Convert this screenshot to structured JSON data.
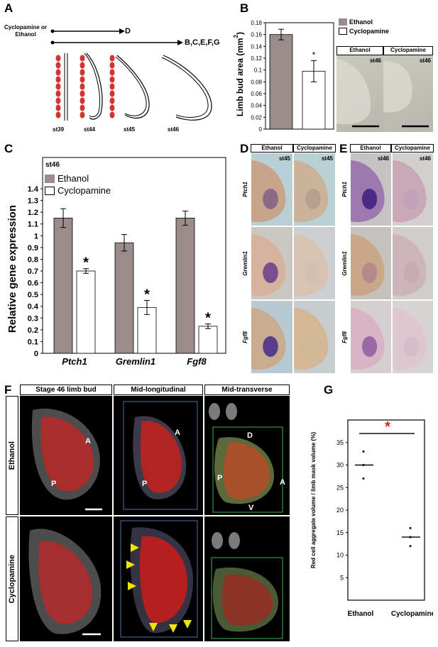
{
  "panels": {
    "A": "A",
    "B": "B",
    "C": "C",
    "D": "D",
    "E": "E",
    "F": "F",
    "G": "G"
  },
  "colors": {
    "ethanol": "#9b8c8c",
    "cyclopamine": "#ffffff",
    "embryo": "#d93030",
    "asterisk_red": "#e02020"
  },
  "panelA": {
    "treatment": "Cyclopamine or Ethanol",
    "arrow_short_target": "D",
    "arrow_long_target": "B,C,E,F,G",
    "stages": [
      "st39",
      "st44",
      "st45",
      "st46"
    ]
  },
  "legend": {
    "ethanol": "Ethanol",
    "cyclopamine": "Cyclopamine"
  },
  "panelB": {
    "photo_headers": [
      "Ethanol",
      "Cyclopamine"
    ],
    "stage_label": "st46"
  },
  "panelC": {
    "stage": "st46"
  },
  "panelD": {
    "headers": [
      "Ethanol",
      "Cyclopamine"
    ],
    "stage": "st45",
    "rows": [
      "Ptch1",
      "Gremlin1",
      "Fgf8"
    ]
  },
  "panelE": {
    "headers": [
      "Ethanol",
      "Cyclopamine"
    ],
    "stage": "st46",
    "rows": [
      "Ptch1",
      "Gremlin1",
      "Fgf8"
    ]
  },
  "panelF": {
    "columns": [
      "Stage 46 limb bud",
      "Mid-longitudinal",
      "Mid-transverse"
    ],
    "rows": [
      "Ethanol",
      "Cyclopamine"
    ],
    "axis_labels": {
      "anterior": "A",
      "posterior": "P",
      "dorsal": "D",
      "ventral": "V"
    }
  },
  "chart_data": [
    {
      "type": "bar",
      "panel": "B",
      "categories": [
        "Ethanol",
        "Cyclopamine"
      ],
      "values": [
        0.16,
        0.098
      ],
      "errors": [
        0.009,
        0.018
      ],
      "significance": [
        "",
        "*"
      ],
      "ylabel": "Limb bud area (mm²)",
      "ylabel_main": "Limb bud area (mm",
      "ylabel_sup": "2",
      "ylabel_end": ")",
      "ylim": [
        0,
        0.18
      ],
      "yticks": [
        "0",
        "0.02",
        "0.04",
        "0.06",
        "0.08",
        "0.1",
        "0.12",
        "0.14",
        "0.16",
        "0.18"
      ]
    },
    {
      "type": "bar",
      "panel": "C",
      "categories": [
        "Ptch1",
        "Gremlin1",
        "Fgf8"
      ],
      "series": [
        {
          "name": "Ethanol",
          "values": [
            1.15,
            0.94,
            1.15
          ],
          "errors": [
            0.08,
            0.07,
            0.06
          ]
        },
        {
          "name": "Cyclopamine",
          "values": [
            0.7,
            0.39,
            0.23
          ],
          "errors": [
            0.02,
            0.06,
            0.02
          ]
        }
      ],
      "significance": [
        "*",
        "*",
        "*"
      ],
      "ylabel": "Relative gene expression",
      "ylim": [
        0,
        1.4
      ],
      "yticks": [
        "0",
        "0.1",
        "0.2",
        "0.3",
        "0.4",
        "0.5",
        "0.6",
        "0.7",
        "0.8",
        "0.9",
        "1",
        "1.1",
        "1.2",
        "1.3",
        "1.4"
      ]
    },
    {
      "type": "scatter",
      "panel": "G",
      "categories": [
        "Ethanol",
        "Cyclopamine"
      ],
      "series": [
        {
          "name": "Ethanol",
          "points": [
            33,
            27,
            30
          ],
          "mean": 30
        },
        {
          "name": "Cyclopamine",
          "points": [
            16,
            12,
            14
          ],
          "mean": 14
        }
      ],
      "significance": "*",
      "ylabel": "Red cell aggregate volume / limb mask volume (%)",
      "ylim": [
        0,
        40
      ],
      "yticks": [
        "0",
        "5",
        "10",
        "15",
        "20",
        "25",
        "30",
        "35"
      ]
    }
  ]
}
